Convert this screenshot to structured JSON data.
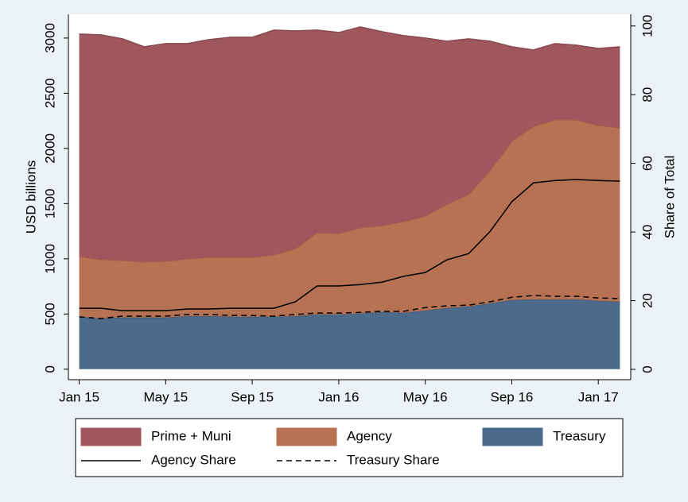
{
  "chart_data": {
    "type": "area",
    "ylabel": "USD billions",
    "y2label": "Share of Total",
    "x": [
      "2015-01",
      "2015-02",
      "2015-03",
      "2015-04",
      "2015-05",
      "2015-06",
      "2015-07",
      "2015-08",
      "2015-09",
      "2015-10",
      "2015-11",
      "2015-12",
      "2016-01",
      "2016-02",
      "2016-03",
      "2016-04",
      "2016-05",
      "2016-06",
      "2016-07",
      "2016-08",
      "2016-09",
      "2016-10",
      "2016-11",
      "2016-12",
      "2017-01",
      "2017-02"
    ],
    "xlim": [
      "2015-01",
      "2017-02"
    ],
    "xticks": [
      {
        "value": "2015-01",
        "label": "Jan 15"
      },
      {
        "value": "2015-05",
        "label": "May 15"
      },
      {
        "value": "2015-09",
        "label": "Sep 15"
      },
      {
        "value": "2016-01",
        "label": "Jan 16"
      },
      {
        "value": "2016-05",
        "label": "May 16"
      },
      {
        "value": "2016-09",
        "label": "Sep 16"
      },
      {
        "value": "2017-01",
        "label": "Jan 17"
      }
    ],
    "ylim": [
      -95,
      3215
    ],
    "yticks": [
      0,
      500,
      1000,
      1500,
      2000,
      2500,
      3000
    ],
    "y2lim": [
      -3,
      103.4
    ],
    "y2ticks": [
      0,
      20,
      40,
      60,
      80,
      100
    ],
    "grid": false,
    "stacked": true,
    "series": [
      {
        "name": "Prime + Muni",
        "type": "area",
        "color": "#a0565d",
        "values": [
          2014,
          2036,
          2007,
          1950,
          1972,
          1950,
          1972,
          1993,
          1993,
          2036,
          1971,
          1835,
          1820,
          1820,
          1756,
          1684,
          1612,
          1475,
          1410,
          1172,
          856,
          691,
          691,
          676,
          697,
          734
        ]
      },
      {
        "name": "Agency",
        "type": "area",
        "color": "#b67252",
        "values": [
          547,
          533,
          518,
          503,
          510,
          518,
          532,
          539,
          539,
          561,
          612,
          741,
          734,
          777,
          784,
          827,
          856,
          942,
          1015,
          1202,
          1439,
          1568,
          1626,
          1626,
          1590,
          1575
        ]
      },
      {
        "name": "Treasury",
        "type": "area",
        "color": "#4c6b8b",
        "values": [
          475,
          460,
          468,
          468,
          468,
          482,
          482,
          475,
          475,
          475,
          482,
          496,
          496,
          504,
          518,
          511,
          532,
          554,
          568,
          597,
          626,
          633,
          633,
          633,
          619,
          612
        ]
      },
      {
        "name": "Agency Share",
        "type": "line",
        "axis": "y2",
        "color": "#000000",
        "line_style": "solid",
        "values": [
          17.8,
          17.8,
          17.1,
          17.1,
          17.1,
          17.6,
          17.6,
          17.8,
          17.8,
          17.8,
          19.7,
          24.3,
          24.3,
          24.7,
          25.4,
          27.1,
          28.2,
          31.9,
          33.7,
          40.2,
          48.8,
          54.3,
          55.0,
          55.3,
          55.0,
          54.8
        ]
      },
      {
        "name": "Treasury Share",
        "type": "line",
        "axis": "y2",
        "color": "#000000",
        "line_style": "dashed",
        "values": [
          15.3,
          14.8,
          15.5,
          15.5,
          15.5,
          16.0,
          16.0,
          15.7,
          15.7,
          15.5,
          16.0,
          16.4,
          16.4,
          16.6,
          16.9,
          16.9,
          18.0,
          18.5,
          18.7,
          19.7,
          21.0,
          21.5,
          21.3,
          21.3,
          20.8,
          20.6
        ]
      }
    ]
  }
}
